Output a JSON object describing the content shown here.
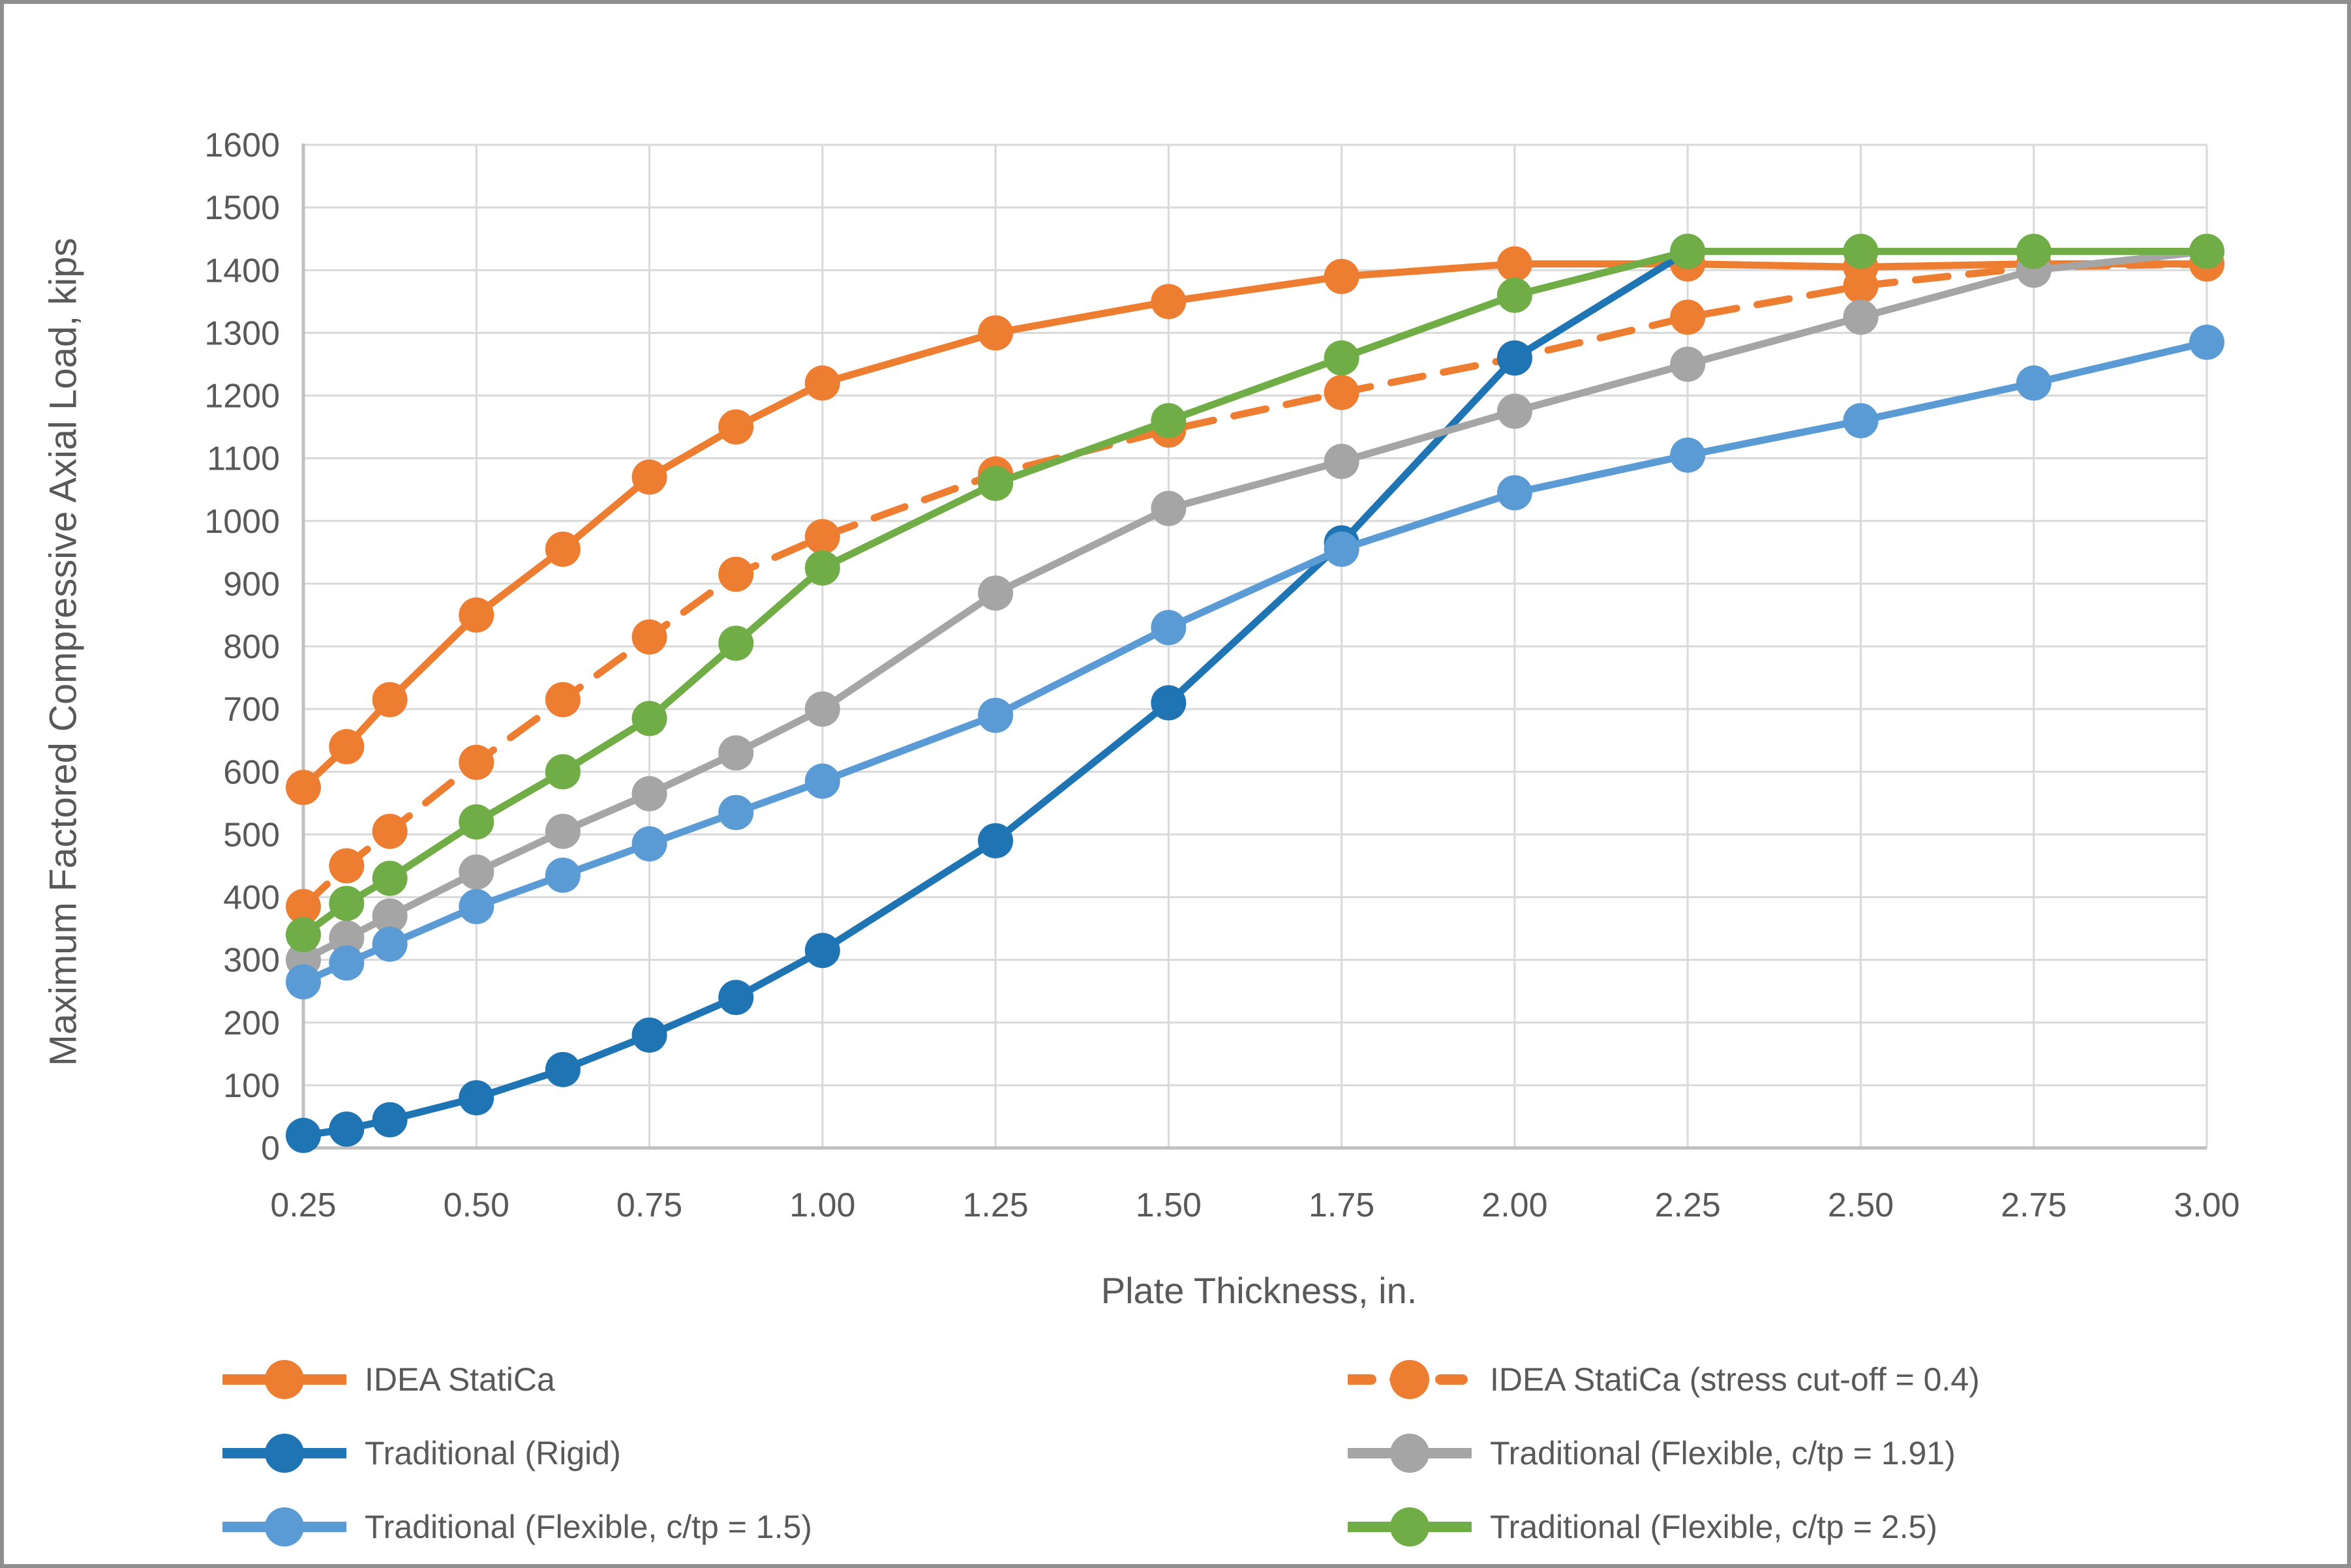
{
  "window": {
    "background_color": "#ffffff",
    "border_color": "#8f8f8f"
  },
  "text_color": "#595959",
  "gridline_color": "#D9D9D9",
  "axisline_color": "#BFBFBF",
  "chart_data": {
    "type": "line",
    "title": "",
    "xlabel": "Plate Thickness, in.",
    "ylabel": "Maximum Factored Compressive Axial Load, kips",
    "xlim": [
      0.25,
      3.0
    ],
    "ylim": [
      0,
      1600
    ],
    "grid": true,
    "legend_position": "bottom, two columns",
    "x_tick_labels": [
      "0.25",
      "0.50",
      "0.75",
      "1.00",
      "1.25",
      "1.50",
      "1.75",
      "2.00",
      "2.25",
      "2.50",
      "2.75",
      "3.00"
    ],
    "x_tick_values": [
      0.25,
      0.5,
      0.75,
      1.0,
      1.25,
      1.5,
      1.75,
      2.0,
      2.25,
      2.5,
      2.75,
      3.0
    ],
    "y_tick_labels": [
      "0",
      "100",
      "200",
      "300",
      "400",
      "500",
      "600",
      "700",
      "800",
      "900",
      "1000",
      "1100",
      "1200",
      "1300",
      "1400",
      "1500",
      "1600"
    ],
    "y_tick_values": [
      0,
      100,
      200,
      300,
      400,
      500,
      600,
      700,
      800,
      900,
      1000,
      1100,
      1200,
      1300,
      1400,
      1500,
      1600
    ],
    "x": [
      0.25,
      0.3125,
      0.375,
      0.5,
      0.625,
      0.75,
      0.875,
      1.0,
      1.25,
      1.5,
      1.75,
      2.0,
      2.25,
      2.5,
      2.75,
      3.0
    ],
    "series": [
      {
        "name": "IDEA StatiCa",
        "color": "#ED7D31",
        "dash": "solid",
        "marker": "circle",
        "values": [
          575,
          640,
          715,
          850,
          955,
          1070,
          1150,
          1220,
          1300,
          1350,
          1390,
          1410,
          1410,
          1405,
          1410,
          1410
        ]
      },
      {
        "name": "IDEA StatiCa (stress cut-off = 0.4)",
        "color": "#ED7D31",
        "dash": "dashed",
        "marker": "circle",
        "values": [
          385,
          450,
          505,
          615,
          715,
          815,
          915,
          975,
          1075,
          1145,
          1205,
          1260,
          1325,
          1375,
          1405,
          1410
        ]
      },
      {
        "name": "Traditional (Rigid)",
        "color": "#1F74B4",
        "dash": "solid",
        "marker": "circle",
        "values": [
          20,
          30,
          45,
          80,
          125,
          180,
          240,
          315,
          490,
          710,
          965,
          1260,
          1430,
          null,
          null,
          null
        ]
      },
      {
        "name": "Traditional (Flexible, c/tp = 1.91)",
        "color": "#A5A5A5",
        "dash": "solid",
        "marker": "circle",
        "values": [
          300,
          335,
          370,
          440,
          505,
          565,
          630,
          700,
          885,
          1020,
          1095,
          1175,
          1250,
          1325,
          1400,
          1430
        ]
      },
      {
        "name": "Traditional (Flexible, c/tp = 1.5)",
        "color": "#5B9BD5",
        "dash": "solid",
        "marker": "circle",
        "values": [
          265,
          295,
          325,
          385,
          435,
          485,
          535,
          585,
          690,
          830,
          955,
          1045,
          1105,
          1160,
          1220,
          1285
        ]
      },
      {
        "name": "Traditional (Flexible, c/tp = 2.5)",
        "color": "#70AD47",
        "dash": "solid",
        "marker": "circle",
        "values": [
          340,
          390,
          430,
          520,
          600,
          685,
          805,
          925,
          1060,
          1160,
          1260,
          1360,
          1430,
          1430,
          1430,
          1430
        ]
      }
    ],
    "legend_columns": [
      [
        0,
        2,
        4
      ],
      [
        1,
        3,
        5
      ]
    ]
  }
}
